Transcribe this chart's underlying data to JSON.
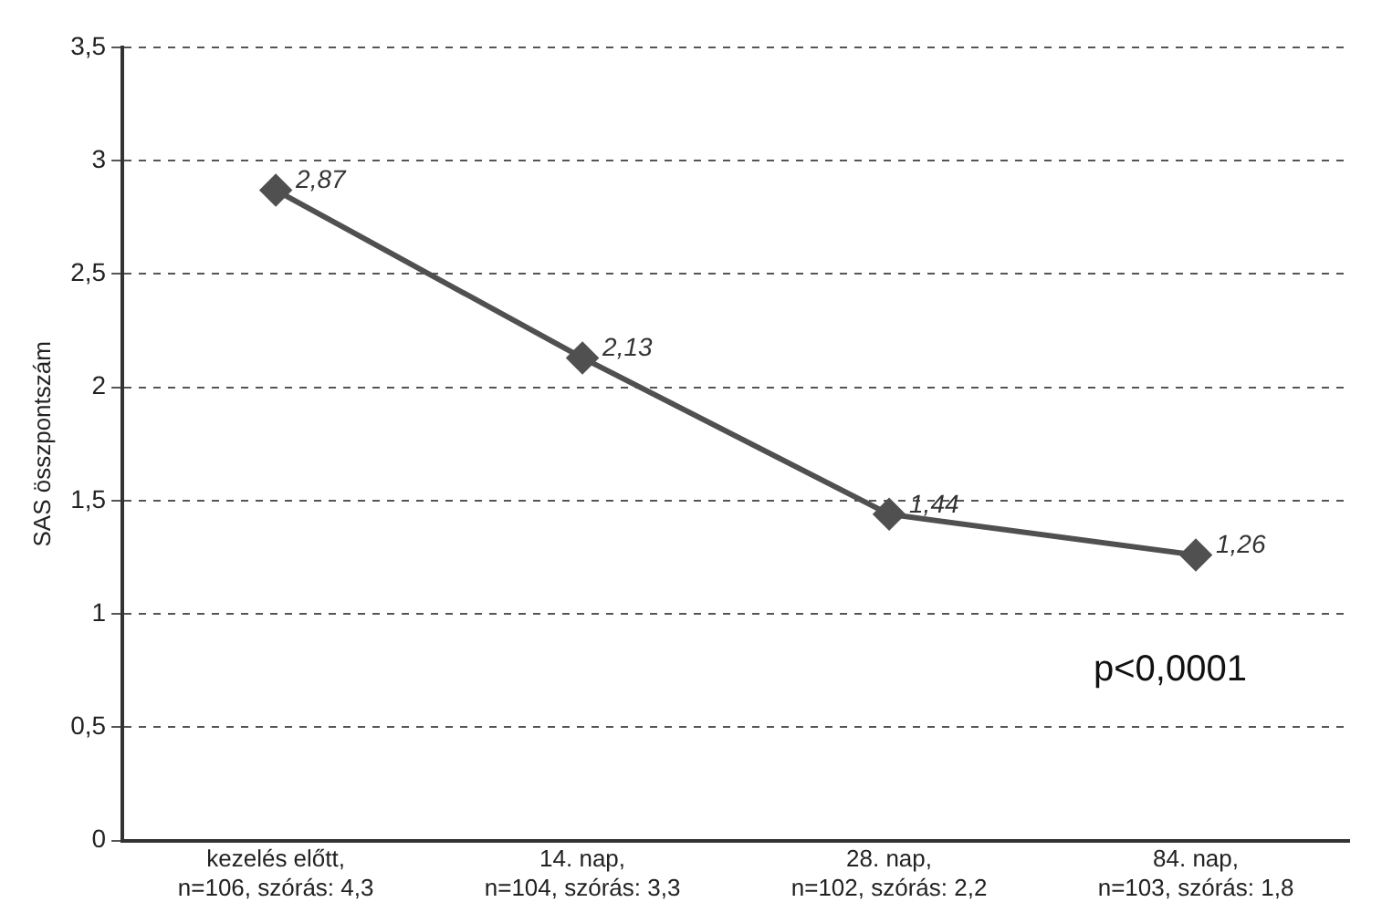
{
  "chart_data": {
    "type": "line",
    "ylabel": "SAS összpontszám",
    "categories": [
      "kezelés előtt,\nn=106, szórás: 4,3",
      "14. nap,\nn=104, szórás: 3,3",
      "28. nap,\nn=102, szórás: 2,2",
      "84. nap,\nn=103, szórás: 1,8"
    ],
    "series": [
      {
        "color": "#505050",
        "values": [
          2.87,
          2.13,
          1.44,
          1.26
        ],
        "value_labels": [
          "2,87",
          "2,13",
          "1,44",
          "1,26"
        ]
      }
    ],
    "ylim": [
      0,
      3.5
    ],
    "yticks": [
      0,
      {
        "value": 0.5,
        "label": "0,5"
      },
      1,
      {
        "value": 1.5,
        "label": "1,5"
      },
      2,
      {
        "value": 2.5,
        "label": "2,5"
      },
      3,
      {
        "value": 3.5,
        "label": "3,5"
      }
    ],
    "grid": "y",
    "marker": "diamond",
    "line_style": "solid",
    "legend": false,
    "annotations": [
      "p<0,0001"
    ]
  }
}
